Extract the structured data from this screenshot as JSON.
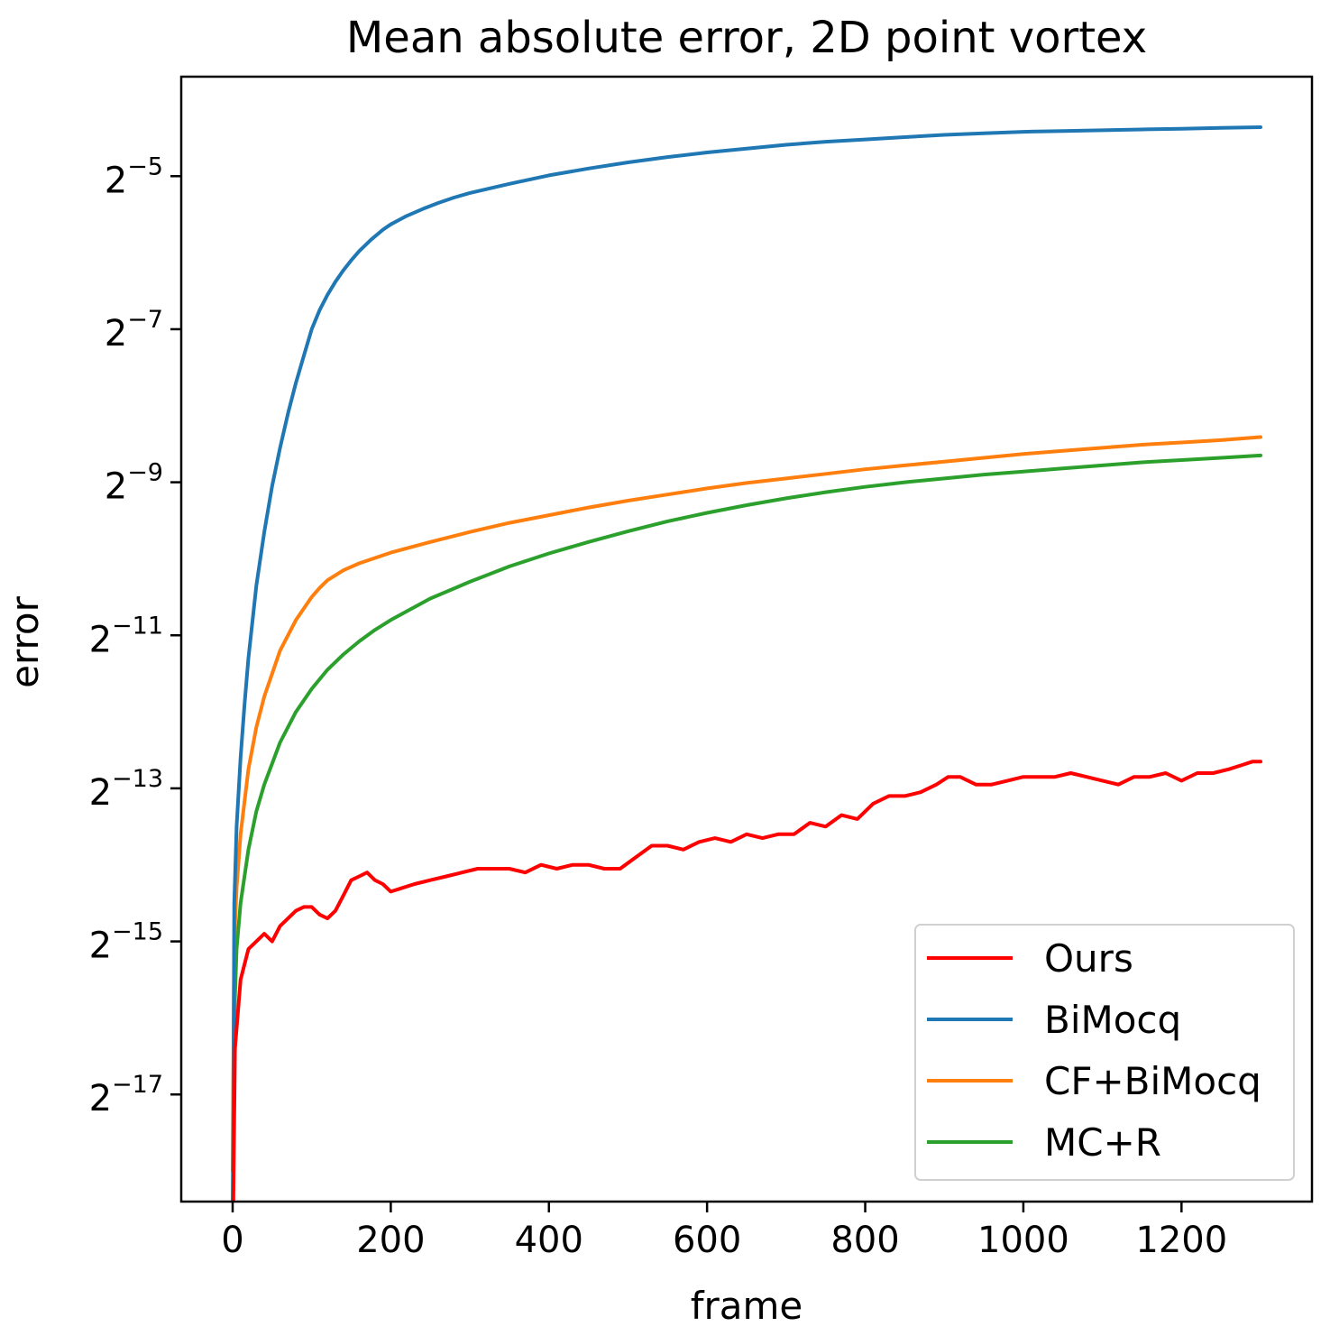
{
  "chart_data": {
    "type": "line",
    "title": "Mean absolute error, 2D point vortex",
    "xlabel": "frame",
    "ylabel": "error",
    "yscale": "log2",
    "xlim": [
      -65,
      1365
    ],
    "ylim_log2": [
      -18.4,
      -3.7
    ],
    "x_ticks": [
      0,
      200,
      400,
      600,
      800,
      1000,
      1200
    ],
    "x_tick_labels": [
      "0",
      "200",
      "400",
      "600",
      "800",
      "1000",
      "1200"
    ],
    "y_ticks_log2": [
      -5,
      -7,
      -9,
      -11,
      -13,
      -15,
      -17
    ],
    "y_tick_base": "2",
    "y_tick_exponents": [
      "−5",
      "−7",
      "−9",
      "−11",
      "−13",
      "−15",
      "−17"
    ],
    "grid": false,
    "legend_position": "lower right",
    "series": [
      {
        "name": "Ours",
        "color": "#ff0000",
        "x": [
          0,
          3,
          10,
          20,
          30,
          40,
          50,
          60,
          70,
          80,
          90,
          100,
          110,
          120,
          130,
          140,
          150,
          160,
          170,
          180,
          190,
          200,
          215,
          230,
          250,
          270,
          290,
          310,
          330,
          350,
          370,
          390,
          410,
          430,
          450,
          470,
          490,
          510,
          530,
          550,
          570,
          590,
          610,
          630,
          650,
          670,
          690,
          710,
          730,
          750,
          770,
          790,
          810,
          830,
          850,
          870,
          890,
          905,
          920,
          940,
          960,
          980,
          1000,
          1020,
          1040,
          1060,
          1080,
          1100,
          1120,
          1140,
          1160,
          1180,
          1200,
          1220,
          1240,
          1260,
          1275,
          1290,
          1300
        ],
        "y_log2": [
          -19.2,
          -16.4,
          -15.5,
          -15.1,
          -15.0,
          -14.9,
          -15.0,
          -14.8,
          -14.7,
          -14.6,
          -14.55,
          -14.55,
          -14.65,
          -14.7,
          -14.6,
          -14.4,
          -14.2,
          -14.15,
          -14.1,
          -14.2,
          -14.25,
          -14.35,
          -14.3,
          -14.25,
          -14.2,
          -14.15,
          -14.1,
          -14.05,
          -14.05,
          -14.05,
          -14.1,
          -14.0,
          -14.05,
          -14.0,
          -14.0,
          -14.05,
          -14.05,
          -13.9,
          -13.75,
          -13.75,
          -13.8,
          -13.7,
          -13.65,
          -13.7,
          -13.6,
          -13.65,
          -13.6,
          -13.6,
          -13.45,
          -13.5,
          -13.35,
          -13.4,
          -13.2,
          -13.1,
          -13.1,
          -13.05,
          -12.95,
          -12.85,
          -12.85,
          -12.95,
          -12.95,
          -12.9,
          -12.85,
          -12.85,
          -12.85,
          -12.8,
          -12.85,
          -12.9,
          -12.95,
          -12.85,
          -12.85,
          -12.8,
          -12.9,
          -12.8,
          -12.8,
          -12.75,
          -12.7,
          -12.65,
          -12.65
        ]
      },
      {
        "name": "BiMocq",
        "color": "#1f77b4",
        "x": [
          0,
          2,
          5,
          10,
          15,
          20,
          30,
          40,
          50,
          60,
          70,
          80,
          90,
          100,
          110,
          120,
          130,
          140,
          150,
          160,
          175,
          190,
          200,
          220,
          240,
          260,
          280,
          300,
          350,
          400,
          450,
          500,
          550,
          600,
          650,
          700,
          750,
          800,
          850,
          900,
          950,
          1000,
          1050,
          1100,
          1150,
          1200,
          1250,
          1300
        ],
        "y_log2": [
          -19.2,
          -14.5,
          -13.5,
          -12.6,
          -11.9,
          -11.3,
          -10.35,
          -9.65,
          -9.05,
          -8.55,
          -8.1,
          -7.7,
          -7.35,
          -7.0,
          -6.75,
          -6.55,
          -6.38,
          -6.23,
          -6.1,
          -5.98,
          -5.83,
          -5.7,
          -5.63,
          -5.52,
          -5.43,
          -5.35,
          -5.28,
          -5.22,
          -5.1,
          -4.99,
          -4.9,
          -4.82,
          -4.75,
          -4.69,
          -4.64,
          -4.59,
          -4.55,
          -4.52,
          -4.49,
          -4.46,
          -4.44,
          -4.42,
          -4.41,
          -4.4,
          -4.39,
          -4.38,
          -4.37,
          -4.36
        ]
      },
      {
        "name": "CF+BiMocq",
        "color": "#ff7f0e",
        "x": [
          0,
          2,
          5,
          10,
          20,
          30,
          40,
          60,
          80,
          100,
          110,
          120,
          140,
          160,
          200,
          250,
          300,
          350,
          400,
          450,
          500,
          550,
          600,
          650,
          700,
          750,
          800,
          850,
          900,
          950,
          1000,
          1050,
          1100,
          1150,
          1200,
          1250,
          1300
        ],
        "y_log2": [
          -18.0,
          -15.0,
          -14.3,
          -13.6,
          -12.75,
          -12.2,
          -11.8,
          -11.2,
          -10.8,
          -10.5,
          -10.38,
          -10.28,
          -10.15,
          -10.06,
          -9.92,
          -9.78,
          -9.65,
          -9.53,
          -9.43,
          -9.33,
          -9.24,
          -9.16,
          -9.08,
          -9.01,
          -8.95,
          -8.89,
          -8.83,
          -8.78,
          -8.73,
          -8.68,
          -8.63,
          -8.59,
          -8.55,
          -8.51,
          -8.48,
          -8.45,
          -8.41
        ]
      },
      {
        "name": "MC+R",
        "color": "#2ca02c",
        "x": [
          0,
          2,
          5,
          10,
          20,
          30,
          40,
          60,
          80,
          100,
          120,
          140,
          160,
          180,
          200,
          250,
          300,
          350,
          400,
          450,
          500,
          550,
          600,
          650,
          700,
          750,
          800,
          850,
          900,
          950,
          1000,
          1050,
          1100,
          1150,
          1200,
          1250,
          1300
        ],
        "y_log2": [
          -18.5,
          -16.0,
          -15.1,
          -14.5,
          -13.8,
          -13.3,
          -12.95,
          -12.4,
          -12.0,
          -11.7,
          -11.45,
          -11.25,
          -11.08,
          -10.93,
          -10.8,
          -10.52,
          -10.3,
          -10.1,
          -9.93,
          -9.78,
          -9.64,
          -9.51,
          -9.4,
          -9.3,
          -9.21,
          -9.13,
          -9.06,
          -9.0,
          -8.95,
          -8.9,
          -8.86,
          -8.82,
          -8.78,
          -8.74,
          -8.71,
          -8.68,
          -8.65
        ]
      }
    ]
  }
}
